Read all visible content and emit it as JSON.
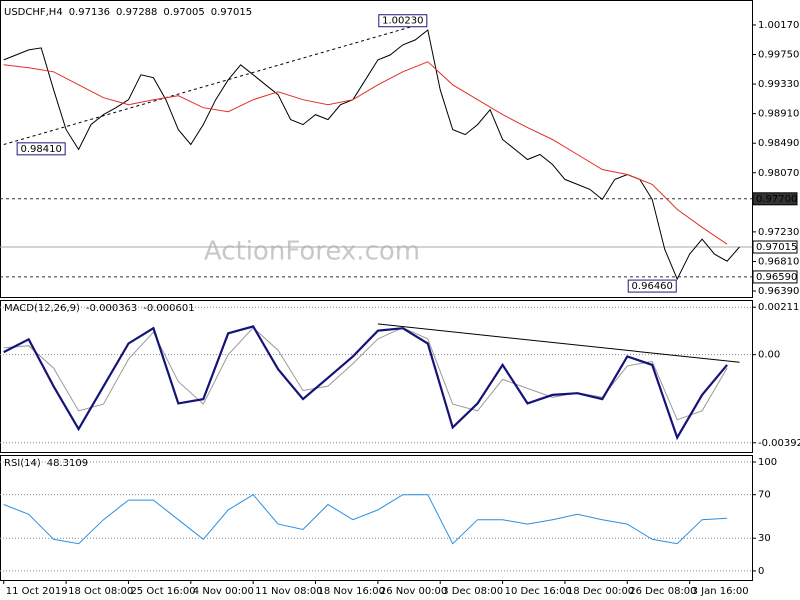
{
  "chart_data": [
    {
      "type": "line",
      "title": "USDCHF,H4",
      "header_values": [
        0.97136,
        0.97288,
        0.97005,
        0.97015
      ],
      "watermark": "ActionForex.com",
      "xlim": [
        -0.3,
        60
      ],
      "ylim": [
        0.96319,
        1.00411
      ],
      "yticks": [
        {
          "value": 1.0017,
          "label": "1.00170"
        },
        {
          "value": 0.9975,
          "label": "0.99750"
        },
        {
          "value": 0.9933,
          "label": "0.99330"
        },
        {
          "value": 0.9891,
          "label": "0.98910"
        },
        {
          "value": 0.9849,
          "label": "0.98490"
        },
        {
          "value": 0.9807,
          "label": "0.98070"
        },
        {
          "value": 0.9723,
          "label": "0.97230"
        },
        {
          "value": 0.9681,
          "label": "0.96810"
        },
        {
          "value": 0.9639,
          "label": "0.96390"
        }
      ],
      "series": [
        {
          "color": "#000000",
          "values": [
            0.99674,
            0.99745,
            0.99816,
            0.99844,
            0.9925,
            0.98683,
            0.984,
            0.98754,
            0.98896,
            0.98995,
            0.99108,
            0.99462,
            0.9942,
            0.99108,
            0.98683,
            0.98471,
            0.98754,
            0.99108,
            0.99391,
            0.99604,
            0.99462,
            0.9932,
            0.99179,
            0.98825,
            0.98754,
            0.98896,
            0.98825,
            0.99037,
            0.99108,
            0.99391,
            0.99674,
            0.99745,
            0.99887,
            0.99958,
            1.00099,
            0.9925,
            0.98683,
            0.98612,
            0.98754,
            0.98966,
            0.98542,
            0.984,
            0.98258,
            0.98329,
            0.98188,
            0.97975,
            0.97904,
            0.97834,
            0.97692,
            0.97975,
            0.98046,
            0.97975,
            0.97692,
            0.96984,
            0.96559,
            0.96913,
            0.97126,
            0.96913,
            0.96814,
            0.97015
          ]
        },
        {
          "color": "#e0302a",
          "x": [
            0,
            2,
            4,
            6,
            8,
            10,
            12,
            14,
            16,
            18,
            20,
            22,
            24,
            26,
            28,
            30,
            32,
            34,
            36,
            38,
            40,
            42,
            44,
            46,
            48,
            50,
            52,
            54,
            56,
            58
          ],
          "values": [
            0.99604,
            0.99561,
            0.99504,
            0.9932,
            0.99136,
            0.99037,
            0.99108,
            0.99165,
            0.98995,
            0.98938,
            0.99108,
            0.99221,
            0.99108,
            0.99037,
            0.99108,
            0.9932,
            0.99504,
            0.99646,
            0.9932,
            0.99108,
            0.98896,
            0.98712,
            0.98542,
            0.98329,
            0.98117,
            0.98046,
            0.97904,
            0.9755,
            0.97295,
            0.97055
          ]
        }
      ],
      "levels": [
        {
          "value": 0.977,
          "label": "0.97700",
          "style": "dashed",
          "box": "dark"
        },
        {
          "value": 0.97015,
          "label": "0.97015",
          "style": "solid",
          "box": "light"
        },
        {
          "value": 0.9659,
          "label": "0.96590",
          "style": "dashed",
          "box": "light"
        }
      ],
      "annotations": [
        {
          "x": 32,
          "value": 1.0023,
          "label": "1.00230"
        },
        {
          "x": 3,
          "value": 0.9841,
          "label": "0.98410"
        },
        {
          "x": 52,
          "value": 0.9646,
          "label": "0.96460"
        }
      ],
      "trendlines": [
        {
          "x": [
            0,
            34
          ],
          "values": [
            0.98471,
            1.00212
          ],
          "style": "dashed"
        }
      ]
    },
    {
      "type": "line",
      "title": "MACD(12,26,9)",
      "header_values": [
        -0.000363,
        -0.000601
      ],
      "xlim": [
        -0.3,
        60
      ],
      "ylim": [
        -0.0042,
        0.0023
      ],
      "grid": "dotted",
      "yticks": [
        0.002113,
        {
          "value": 0,
          "label": "0.00"
        },
        -0.003922
      ],
      "series": [
        {
          "color": "#9a9a9a",
          "x": [
            0,
            2,
            4,
            6,
            8,
            10,
            12,
            14,
            16,
            18,
            20,
            22,
            24,
            26,
            28,
            30,
            32,
            34,
            36,
            38,
            40,
            42,
            44,
            46,
            48,
            50,
            52,
            54,
            56,
            58
          ],
          "values": [
            0.0003,
            0.0004,
            -0.0006,
            -0.0025,
            -0.0022,
            -0.0002,
            0.001,
            -0.0012,
            -0.0022,
            0.0,
            0.0012,
            0.0002,
            -0.0016,
            -0.0014,
            -0.0004,
            0.0007,
            0.0012,
            0.0007,
            -0.0022,
            -0.0025,
            -0.0011,
            -0.0015,
            -0.0019,
            -0.0017,
            -0.0019,
            -0.0005,
            -0.0003,
            -0.0029,
            -0.0025,
            -0.0006
          ]
        },
        {
          "color": "#141478",
          "x": [
            0,
            2,
            4,
            6,
            8,
            10,
            12,
            14,
            16,
            18,
            20,
            22,
            24,
            26,
            28,
            30,
            32,
            34,
            36,
            38,
            40,
            42,
            44,
            46,
            48,
            50,
            52,
            54,
            56,
            58
          ],
          "values": [
            0.000114,
            0.000685,
            -0.001409,
            -0.003313,
            -0.001409,
            0.000495,
            0.00118,
            -0.00217,
            -0.00198,
            0.000952,
            0.001257,
            -0.000647,
            -0.00198,
            -0.001028,
            -7.6e-05,
            0.001066,
            0.00118,
            0.000495,
            -0.003237,
            -0.00217,
            -0.000457,
            -0.00217,
            -0.00179,
            -0.001714,
            -0.00198,
            -7.6e-05,
            -0.000457,
            -0.003694,
            -0.00179,
            -0.000457
          ]
        }
      ],
      "trendlines": [
        {
          "x": [
            30,
            59
          ],
          "values": [
            0.00137,
            -0.00034
          ],
          "style": "solid"
        }
      ]
    },
    {
      "type": "line",
      "title": "RSI(14)",
      "header_values": [
        48.3109
      ],
      "xlim": [
        -0.3,
        60
      ],
      "ylim": [
        -1,
        100
      ],
      "grid": "dotted",
      "yticks": [
        100,
        70,
        30,
        0
      ],
      "xticks": [
        {
          "value": 0,
          "label": "11 Oct 2019"
        },
        {
          "value": 5,
          "label": "18 Oct 08:00"
        },
        {
          "value": 10,
          "label": "25 Oct 16:00"
        },
        {
          "value": 15,
          "label": "4 Nov 00:00"
        },
        {
          "value": 20,
          "label": "11 Nov 08:00"
        },
        {
          "value": 25,
          "label": "18 Nov 16:00"
        },
        {
          "value": 30,
          "label": "26 Nov 00:00"
        },
        {
          "value": 35,
          "label": "3 Dec 08:00"
        },
        {
          "value": 40,
          "label": "10 Dec 16:00"
        },
        {
          "value": 45,
          "label": "18 Dec 00:00"
        },
        {
          "value": 50,
          "label": "26 Dec 08:00"
        },
        {
          "value": 55,
          "label": "3 Jan 16:00"
        }
      ],
      "series": [
        {
          "color": "#2a8fe0",
          "x": [
            0,
            2,
            4,
            6,
            8,
            10,
            12,
            14,
            16,
            18,
            20,
            22,
            24,
            26,
            28,
            30,
            32,
            34,
            36,
            38,
            40,
            42,
            44,
            46,
            48,
            50,
            52,
            54,
            56,
            58
          ],
          "values": [
            61,
            52,
            29,
            25,
            47,
            65,
            65,
            47,
            29,
            56,
            70,
            43,
            38,
            61,
            47,
            56,
            70,
            70,
            25,
            47,
            47,
            43,
            47,
            52,
            47,
            43,
            29,
            25,
            47,
            48.3
          ]
        }
      ]
    }
  ]
}
